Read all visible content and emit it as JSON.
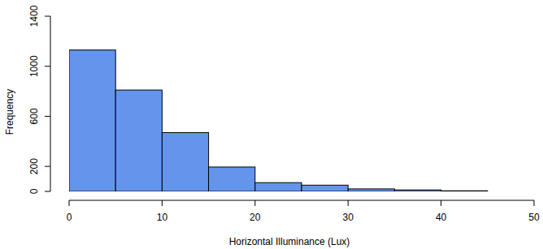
{
  "chart_data": {
    "type": "histogram",
    "x_label": "Horizontal Illuminance (Lux)",
    "y_label": "Frequency",
    "bins": [
      0,
      5,
      10,
      15,
      20,
      25,
      30,
      35,
      40,
      45
    ],
    "values": [
      1130,
      810,
      470,
      195,
      70,
      50,
      20,
      12,
      5
    ],
    "color": "#6495ed",
    "xlim": [
      0,
      50
    ],
    "xticks": [
      0,
      10,
      20,
      30,
      40,
      50
    ],
    "ylim": [
      0,
      1400
    ],
    "yticks": [
      0,
      200,
      600,
      1000,
      1400
    ],
    "grid": false
  }
}
